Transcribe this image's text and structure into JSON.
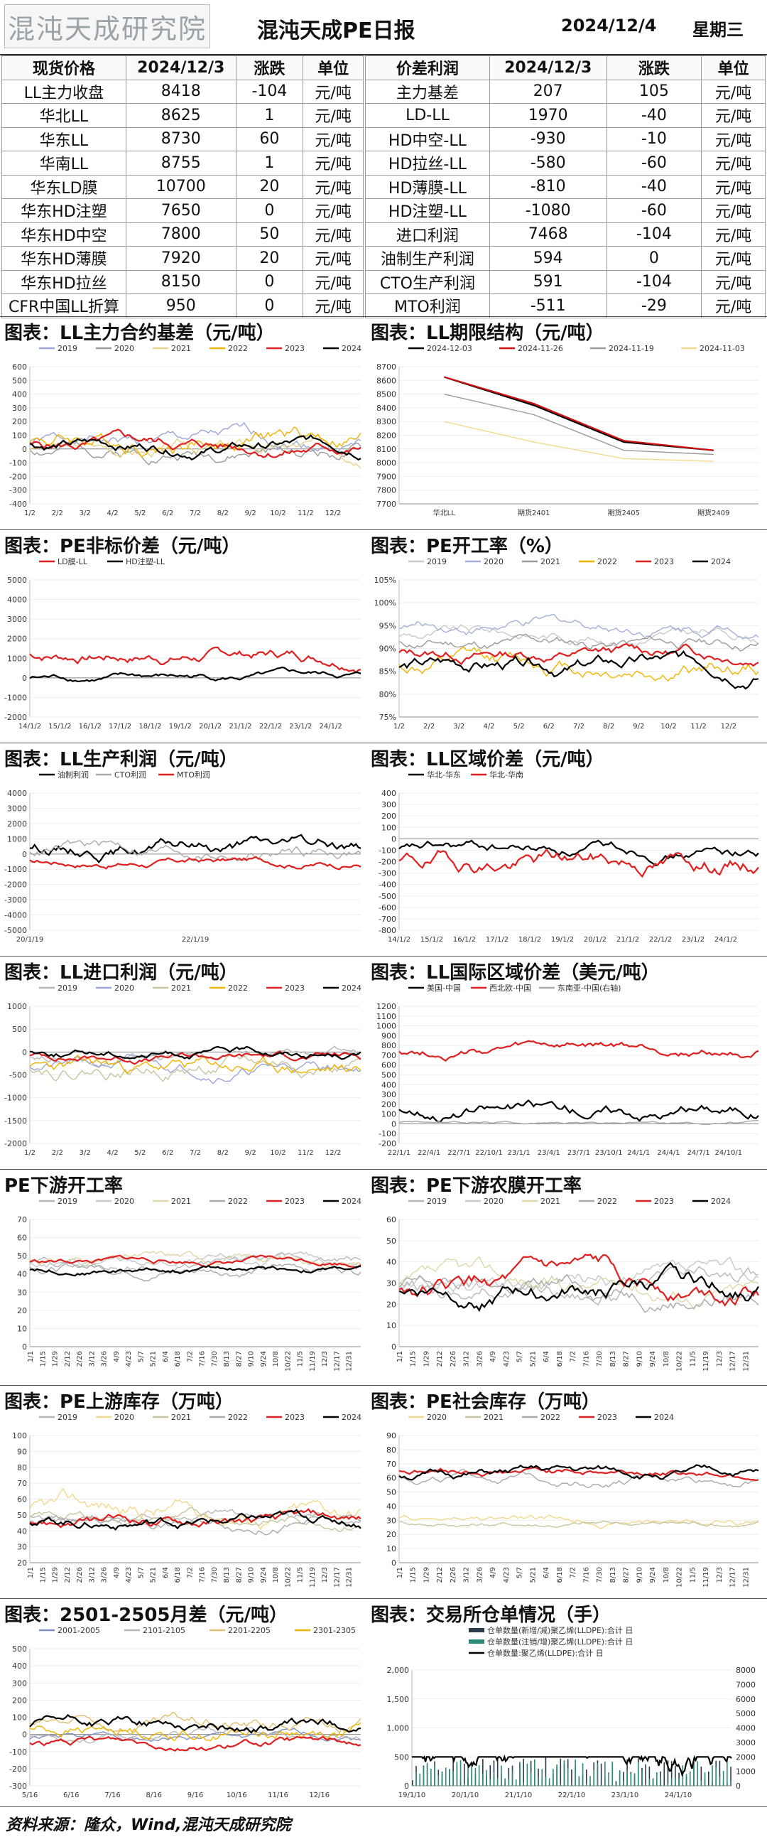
{
  "header": {
    "logo": "混沌天成研究院",
    "title": "混沌天成PE日报",
    "date": "2024/12/4",
    "weekday": "星期三"
  },
  "left_table": {
    "headers": [
      "现货价格",
      "2024/12/3",
      "涨跌",
      "单位"
    ],
    "rows": [
      [
        "LL主力收盘",
        "8418",
        "-104",
        "元/吨"
      ],
      [
        "华北LL",
        "8625",
        "1",
        "元/吨"
      ],
      [
        "华东LL",
        "8730",
        "60",
        "元/吨"
      ],
      [
        "华南LL",
        "8755",
        "1",
        "元/吨"
      ],
      [
        "华东LD膜",
        "10700",
        "20",
        "元/吨"
      ],
      [
        "华东HD注塑",
        "7650",
        "0",
        "元/吨"
      ],
      [
        "华东HD中空",
        "7800",
        "50",
        "元/吨"
      ],
      [
        "华东HD薄膜",
        "7920",
        "20",
        "元/吨"
      ],
      [
        "华东HD拉丝",
        "8150",
        "0",
        "元/吨"
      ],
      [
        "CFR中国LL折算",
        "950",
        "0",
        "元/吨"
      ]
    ]
  },
  "right_table": {
    "headers": [
      "价差利润",
      "2024/12/3",
      "涨跌",
      "单位"
    ],
    "rows": [
      [
        "主力基差",
        "207",
        "105",
        "元/吨"
      ],
      [
        "LD-LL",
        "1970",
        "-40",
        "元/吨"
      ],
      [
        "HD中空-LL",
        "-930",
        "-10",
        "元/吨"
      ],
      [
        "HD拉丝-LL",
        "-580",
        "-60",
        "元/吨"
      ],
      [
        "HD薄膜-LL",
        "-810",
        "-40",
        "元/吨"
      ],
      [
        "HD注塑-LL",
        "-1080",
        "-60",
        "元/吨"
      ],
      [
        "进口利润",
        "7468",
        "-104",
        "元/吨"
      ],
      [
        "油制生产利润",
        "594",
        "0",
        "元/吨"
      ],
      [
        "CTO生产利润",
        "591",
        "-104",
        "元/吨"
      ],
      [
        "MTO利润",
        "-511",
        "-29",
        "元/吨"
      ]
    ]
  },
  "footer": "资料来源：隆众，Wind,混沌天成研究院",
  "chart_data": [
    {
      "id": "c1",
      "type": "line",
      "title": "图表：LL主力合约基差（元/吨）",
      "ylim": [
        -400,
        600
      ],
      "yticks": [
        600,
        500,
        400,
        300,
        200,
        100,
        0,
        -100,
        -200,
        -300,
        -400
      ],
      "xticks": [
        "1/2",
        "2/2",
        "3/2",
        "4/2",
        "5/2",
        "6/2",
        "7/2",
        "8/2",
        "9/2",
        "10/2",
        "11/2",
        "12/2"
      ],
      "series": [
        {
          "name": "2019",
          "color": "#9aa6d6",
          "base": 50,
          "amp": 150,
          "seed": 1
        },
        {
          "name": "2020",
          "color": "#9a9a9a",
          "base": 0,
          "amp": 150,
          "seed": 2
        },
        {
          "name": "2021",
          "color": "#e9d28a",
          "base": 0,
          "amp": 150,
          "seed": 3
        },
        {
          "name": "2022",
          "color": "#f0b400",
          "base": 80,
          "amp": 200,
          "seed": 4
        },
        {
          "name": "2023",
          "color": "#e02020",
          "base": 20,
          "amp": 130,
          "seed": 5
        },
        {
          "name": "2024",
          "color": "#000000",
          "base": 30,
          "amp": 120,
          "seed": 6
        }
      ]
    },
    {
      "id": "c2",
      "type": "line",
      "title": "图表：LL期限结构（元/吨）",
      "ylim": [
        7700,
        8700
      ],
      "yticks": [
        8700,
        8600,
        8500,
        8400,
        8300,
        8200,
        8100,
        8000,
        7900,
        7800,
        7700
      ],
      "categories": [
        "华北LL",
        "期货2401",
        "期货2405",
        "期货2409"
      ],
      "series": [
        {
          "name": "2024-12-03",
          "color": "#000000",
          "values": [
            8625,
            8418,
            8150,
            8090
          ]
        },
        {
          "name": "2024-11-26",
          "color": "#d01010",
          "values": [
            8625,
            8430,
            8160,
            8090
          ]
        },
        {
          "name": "2024-11-19",
          "color": "#999999",
          "values": [
            8500,
            8350,
            8090,
            8060
          ]
        },
        {
          "name": "2024-11-03",
          "color": "#f2d98c",
          "values": [
            8300,
            8150,
            8030,
            8010
          ]
        }
      ]
    },
    {
      "id": "c3",
      "type": "line",
      "title": "图表：PE非标价差（元/吨）",
      "ylim": [
        -2000,
        5000
      ],
      "yticks": [
        5000,
        4000,
        3000,
        2000,
        1000,
        0,
        -1000,
        -2000
      ],
      "xticks": [
        "14/1/2",
        "15/1/2",
        "16/1/2",
        "17/1/2",
        "18/1/2",
        "19/1/2",
        "20/1/2",
        "21/1/2",
        "22/1/2",
        "23/1/2",
        "24/1/2"
      ],
      "series": [
        {
          "name": "LD膜-LL",
          "color": "#e02020",
          "base": 1200,
          "amp": 900,
          "seed": 7
        },
        {
          "name": "HD注塑-LL",
          "color": "#000000",
          "base": 0,
          "amp": 500,
          "seed": 8
        }
      ]
    },
    {
      "id": "c4",
      "type": "line",
      "title": "图表：PE开工率（%）",
      "ylim": [
        75,
        105
      ],
      "yticks": [
        "105%",
        "100%",
        "95%",
        "90%",
        "85%",
        "80%",
        "75%"
      ],
      "xticks": [
        "1/2",
        "2/2",
        "3/2",
        "4/2",
        "5/2",
        "6/2",
        "7/2",
        "8/2",
        "9/2",
        "10/2",
        "11/2",
        "12/2"
      ],
      "series": [
        {
          "name": "2019",
          "color": "#c9c9c9",
          "base": 93,
          "amp": 4,
          "seed": 9
        },
        {
          "name": "2020",
          "color": "#a5b0d8",
          "base": 95,
          "amp": 4,
          "seed": 10
        },
        {
          "name": "2021",
          "color": "#9a9a9a",
          "base": 91,
          "amp": 4,
          "seed": 11
        },
        {
          "name": "2022",
          "color": "#f0b400",
          "base": 86,
          "amp": 6,
          "seed": 12
        },
        {
          "name": "2023",
          "color": "#e02020",
          "base": 89,
          "amp": 4,
          "seed": 13
        },
        {
          "name": "2024",
          "color": "#000000",
          "base": 86,
          "amp": 5,
          "seed": 14
        }
      ]
    },
    {
      "id": "c5",
      "type": "line",
      "title": "图表：LL生产利润（元/吨）",
      "ylim": [
        -5000,
        4000
      ],
      "yticks": [
        4000,
        3000,
        2000,
        1000,
        0,
        -1000,
        -2000,
        -3000,
        -4000,
        -5000
      ],
      "xticks": [
        "20/1/19",
        "22/1/19"
      ],
      "series": [
        {
          "name": "油制利润",
          "color": "#000000",
          "base": 500,
          "amp": 1300,
          "seed": 15
        },
        {
          "name": "CTO利润",
          "color": "#aaaaaa",
          "base": 300,
          "amp": 1300,
          "seed": 16
        },
        {
          "name": "MTO利润",
          "color": "#e02020",
          "base": -500,
          "amp": 700,
          "seed": 17
        }
      ]
    },
    {
      "id": "c6",
      "type": "line",
      "title": "图表：LL区域价差（元/吨）",
      "ylim": [
        -800,
        400
      ],
      "yticks": [
        400,
        300,
        200,
        100,
        0,
        -100,
        -200,
        -300,
        -400,
        -500,
        -600,
        -700,
        -800
      ],
      "xticks": [
        "14/1/2",
        "15/1/2",
        "16/1/2",
        "17/1/2",
        "18/1/2",
        "19/1/2",
        "20/1/2",
        "21/1/2",
        "22/1/2",
        "23/1/2",
        "24/1/2"
      ],
      "series": [
        {
          "name": "华北-华东",
          "color": "#000000",
          "base": -100,
          "amp": 150,
          "seed": 18
        },
        {
          "name": "华北-华南",
          "color": "#e02020",
          "base": -200,
          "amp": 250,
          "seed": 19
        }
      ]
    },
    {
      "id": "c7",
      "type": "line",
      "title": "图表：LL进口利润（元/吨）",
      "ylim": [
        -2000,
        1000
      ],
      "yticks": [
        1000,
        500,
        0,
        -500,
        -1000,
        -1500,
        -2000
      ],
      "xticks": [
        "1/2",
        "2/2",
        "3/2",
        "4/2",
        "5/2",
        "6/2",
        "7/2",
        "8/2",
        "9/2",
        "10/2",
        "11/2",
        "12/2"
      ],
      "series": [
        {
          "name": "2019",
          "color": "#b8b8b8",
          "base": -100,
          "amp": 300,
          "seed": 20
        },
        {
          "name": "2020",
          "color": "#9aa6d6",
          "base": -300,
          "amp": 400,
          "seed": 21
        },
        {
          "name": "2021",
          "color": "#c6c6a0",
          "base": -300,
          "amp": 500,
          "seed": 22
        },
        {
          "name": "2022",
          "color": "#f0b400",
          "base": -400,
          "amp": 500,
          "seed": 23
        },
        {
          "name": "2023",
          "color": "#e02020",
          "base": -100,
          "amp": 250,
          "seed": 24
        },
        {
          "name": "2024",
          "color": "#000000",
          "base": 0,
          "amp": 250,
          "seed": 25
        }
      ]
    },
    {
      "id": "c8",
      "type": "line",
      "title": "图表：LL国际区域价差（美元/吨）",
      "ylim": [
        -200,
        1200
      ],
      "yticks": [
        1200,
        1100,
        1000,
        900,
        800,
        700,
        600,
        500,
        400,
        300,
        200,
        100,
        0,
        -100,
        -200
      ],
      "xticks": [
        "22/1/1",
        "22/4/1",
        "22/7/1",
        "22/10/1",
        "23/1/1",
        "23/4/1",
        "23/7/1",
        "23/10/1",
        "24/1/1",
        "24/4/1",
        "24/7/1",
        "24/10/1"
      ],
      "series": [
        {
          "name": "美国-中国",
          "color": "#000000",
          "base": 150,
          "amp": 200,
          "seed": 26
        },
        {
          "name": "西北欧-中国",
          "color": "#e02020",
          "base": 750,
          "amp": 150,
          "seed": 27
        },
        {
          "name": "东南亚-中国(右轴)",
          "color": "#aaaaaa",
          "base": 20,
          "amp": 40,
          "seed": 28
        }
      ]
    },
    {
      "id": "c9",
      "type": "line",
      "title": "PE下游开工率",
      "ylim": [
        0,
        70
      ],
      "yticks": [
        70,
        60,
        50,
        40,
        30,
        20,
        10,
        0
      ],
      "xticks": [
        "1/1",
        "1/15",
        "1/29",
        "2/12",
        "2/26",
        "3/12",
        "3/26",
        "4/9",
        "4/23",
        "5/7",
        "5/21",
        "6/4",
        "6/18",
        "7/2",
        "7/16",
        "7/30",
        "8/13",
        "8/27",
        "9/10",
        "9/24",
        "10/8",
        "10/22",
        "11/5",
        "11/19",
        "12/3",
        "12/17",
        "12/31"
      ],
      "series": [
        {
          "name": "2019",
          "color": "#b8b8b8",
          "base": 45,
          "amp": 8,
          "seed": 29
        },
        {
          "name": "2020",
          "color": "#c9c9c9",
          "base": 45,
          "amp": 8,
          "seed": 30
        },
        {
          "name": "2021",
          "color": "#e0d8a8",
          "base": 48,
          "amp": 8,
          "seed": 31
        },
        {
          "name": "2022",
          "color": "#aaaaaa",
          "base": 44,
          "amp": 8,
          "seed": 32
        },
        {
          "name": "2023",
          "color": "#e02020",
          "base": 47,
          "amp": 5,
          "seed": 33
        },
        {
          "name": "2024",
          "color": "#000000",
          "base": 43,
          "amp": 5,
          "seed": 34
        }
      ]
    },
    {
      "id": "c10",
      "type": "line",
      "title": "图表：PE下游农膜开工率",
      "ylim": [
        0,
        60
      ],
      "yticks": [
        60,
        50,
        40,
        30,
        20,
        10,
        0
      ],
      "xticks": [
        "1/1",
        "1/15",
        "1/29",
        "2/12",
        "2/26",
        "3/12",
        "3/26",
        "4/9",
        "4/23",
        "5/7",
        "5/21",
        "6/4",
        "6/18",
        "7/2",
        "7/16",
        "7/30",
        "8/13",
        "8/27",
        "9/10",
        "9/24",
        "10/8",
        "10/22",
        "11/5",
        "11/19",
        "12/3",
        "12/17",
        "12/31"
      ],
      "series": [
        {
          "name": "2019",
          "color": "#b8b8b8",
          "base": 28,
          "amp": 14,
          "seed": 35
        },
        {
          "name": "2020",
          "color": "#c9c9c9",
          "base": 28,
          "amp": 14,
          "seed": 36
        },
        {
          "name": "2021",
          "color": "#e0d8a8",
          "base": 28,
          "amp": 14,
          "seed": 37
        },
        {
          "name": "2022",
          "color": "#aaaaaa",
          "base": 28,
          "amp": 14,
          "seed": 38
        },
        {
          "name": "2023",
          "color": "#e02020",
          "base": 28,
          "amp": 14,
          "seed": 39
        },
        {
          "name": "2024",
          "color": "#000000",
          "base": 28,
          "amp": 14,
          "seed": 40
        }
      ]
    },
    {
      "id": "c11",
      "type": "line",
      "title": "图表：PE上游库存（万吨）",
      "ylim": [
        20,
        100
      ],
      "yticks": [
        100,
        90,
        80,
        70,
        60,
        50,
        40,
        30,
        20
      ],
      "xticks": [
        "1/1",
        "1/15",
        "1/29",
        "2/12",
        "2/26",
        "3/12",
        "3/26",
        "4/9",
        "4/23",
        "5/7",
        "5/21",
        "6/4",
        "6/18",
        "7/2",
        "7/16",
        "7/30",
        "8/13",
        "8/27",
        "9/10",
        "9/24",
        "10/8",
        "10/22",
        "11/5",
        "11/19",
        "12/3",
        "12/17",
        "12/31"
      ],
      "series": [
        {
          "name": "2019",
          "color": "#b8b8b8",
          "base": 48,
          "amp": 10,
          "seed": 41
        },
        {
          "name": "2020",
          "color": "#f2d98c",
          "base": 52,
          "amp": 18,
          "seed": 42
        },
        {
          "name": "2021",
          "color": "#c6c6a0",
          "base": 48,
          "amp": 10,
          "seed": 43
        },
        {
          "name": "2022",
          "color": "#aaaaaa",
          "base": 46,
          "amp": 10,
          "seed": 44
        },
        {
          "name": "2023",
          "color": "#e02020",
          "base": 46,
          "amp": 10,
          "seed": 45
        },
        {
          "name": "2024",
          "color": "#000000",
          "base": 46,
          "amp": 10,
          "seed": 46
        }
      ]
    },
    {
      "id": "c12",
      "type": "line",
      "title": "图表：PE社会库存（万吨）",
      "ylim": [
        0,
        90
      ],
      "yticks": [
        90,
        80,
        70,
        60,
        50,
        40,
        30,
        20,
        10,
        0
      ],
      "xticks": [
        "1/1",
        "1/15",
        "1/29",
        "2/12",
        "2/26",
        "3/12",
        "3/26",
        "4/9",
        "4/23",
        "5/7",
        "5/21",
        "6/4",
        "6/18",
        "7/2",
        "7/16",
        "7/30",
        "8/13",
        "8/27",
        "9/10",
        "9/24",
        "10/8",
        "10/22",
        "11/5",
        "11/19",
        "12/3",
        "12/17",
        "12/31"
      ],
      "series": [
        {
          "name": "2020",
          "color": "#f2d98c",
          "base": 30,
          "amp": 8,
          "seed": 47
        },
        {
          "name": "2021",
          "color": "#c6c6a0",
          "base": 28,
          "amp": 6,
          "seed": 48
        },
        {
          "name": "2022",
          "color": "#aaaaaa",
          "base": 60,
          "amp": 10,
          "seed": 49
        },
        {
          "name": "2023",
          "color": "#e02020",
          "base": 65,
          "amp": 8,
          "seed": 50
        },
        {
          "name": "2024",
          "color": "#000000",
          "base": 62,
          "amp": 10,
          "seed": 51
        }
      ]
    },
    {
      "id": "c13",
      "type": "line",
      "title": "图表：2501-2505月差（元/吨）",
      "ylim": [
        -300,
        500
      ],
      "yticks": [
        500,
        400,
        300,
        200,
        100,
        0,
        -100,
        -200,
        -300
      ],
      "xticks": [
        "5/16",
        "6/16",
        "7/16",
        "8/16",
        "9/16",
        "10/16",
        "11/16",
        "12/16"
      ],
      "series": [
        {
          "name": "2001-2005",
          "color": "#7f8fbf",
          "base": -20,
          "amp": 60,
          "seed": 52
        },
        {
          "name": "2101-2105",
          "color": "#b8b8b8",
          "base": 0,
          "amp": 80,
          "seed": 53
        },
        {
          "name": "2201-2205",
          "color": "#e0c070",
          "base": 50,
          "amp": 120,
          "seed": 54
        },
        {
          "name": "2301-2305",
          "color": "#f0b400",
          "base": 30,
          "amp": 120,
          "seed": 55
        },
        {
          "name": "2401-2405",
          "color": "#e02020",
          "base": -50,
          "amp": 70,
          "seed": 56
        },
        {
          "name": "2501-2505",
          "color": "#000000",
          "base": 50,
          "amp": 100,
          "seed": 57
        }
      ]
    },
    {
      "id": "c14",
      "type": "bar-line",
      "title": "图表：交易所仓单情况（手）",
      "ylim": [
        0,
        2000
      ],
      "yticks": [
        "2,000",
        "1,500",
        "1,000",
        "500",
        "0"
      ],
      "y2lim": [
        0,
        8000
      ],
      "y2ticks": [
        8000,
        7000,
        6000,
        5000,
        4000,
        3000,
        2000,
        1000,
        0
      ],
      "xticks": [
        "19/1/10",
        "20/1/10",
        "21/1/10",
        "22/1/10",
        "23/1/10",
        "24/1/10"
      ],
      "series": [
        {
          "name": "仓单数量(新增/减)聚乙烯(LLDPE):合计 日",
          "color": "#2a3a4a",
          "base": 50,
          "amp": 60,
          "seed": 58
        },
        {
          "name": "仓单数量(注销/增)聚乙烯(LLDPE):合计 日",
          "color": "#2f8a7a",
          "base": 40,
          "amp": 60,
          "seed": 59
        },
        {
          "name": "仓单数量:聚乙烯(LLDPE):合计 日",
          "color": "#000000",
          "base": 2200,
          "amp": 2400,
          "seed": 60
        }
      ]
    }
  ]
}
